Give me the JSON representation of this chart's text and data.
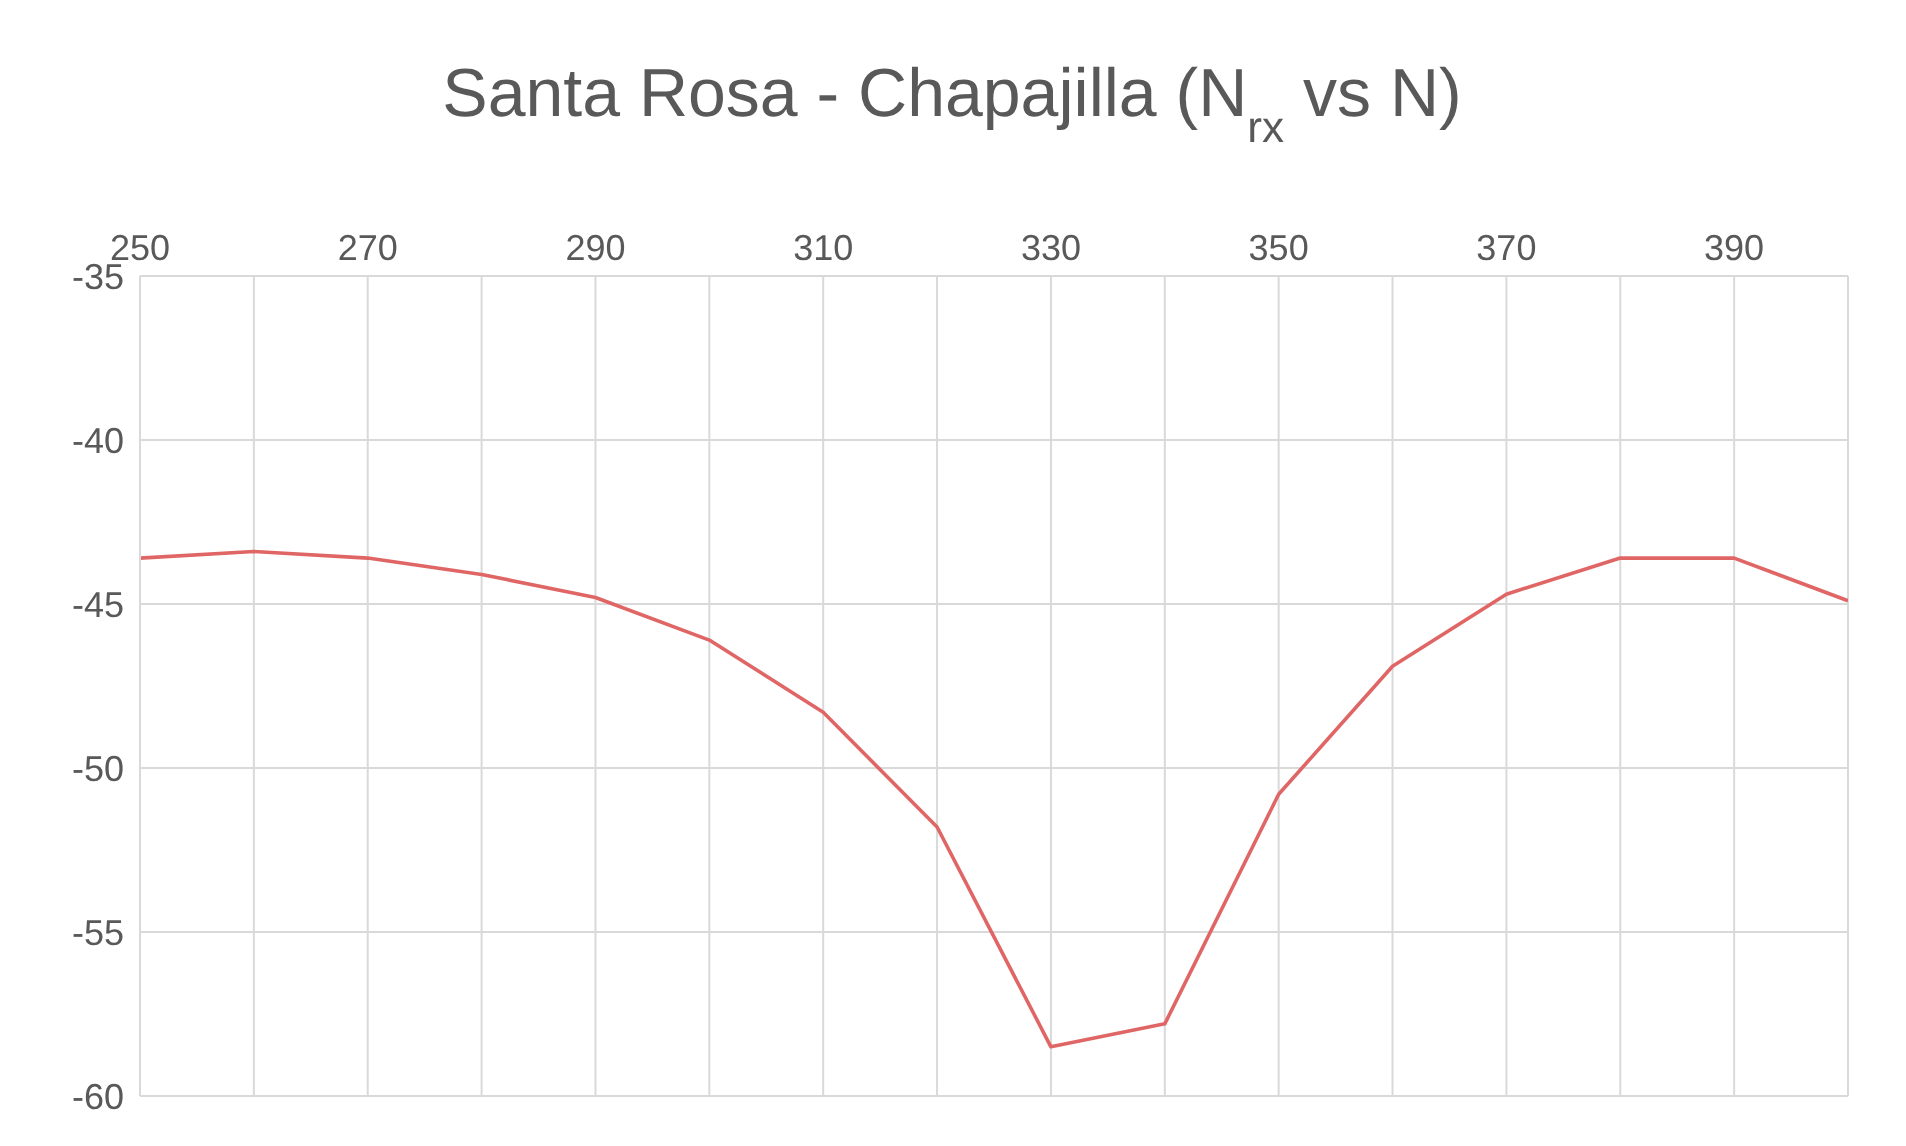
{
  "chart_data": {
    "type": "line",
    "title": "Santa Rosa - Chapajilla (N$_{rx}$ vs N)",
    "x": [
      250,
      260,
      270,
      280,
      290,
      300,
      310,
      320,
      330,
      340,
      350,
      360,
      370,
      380,
      390,
      400
    ],
    "series": [
      {
        "color": "#e06666",
        "values": [
          -43.6,
          -43.4,
          -43.6,
          -44.1,
          -44.8,
          -46.1,
          -48.3,
          -51.8,
          -58.5,
          -57.8,
          -50.8,
          -46.9,
          -44.7,
          -43.6,
          -43.6,
          -44.9
        ]
      }
    ],
    "xlim": [
      250,
      400
    ],
    "xticks": [
      250,
      {
        "value": 260,
        "label": null
      },
      270,
      {
        "value": 280,
        "label": null
      },
      290,
      {
        "value": 300,
        "label": null
      },
      310,
      {
        "value": 320,
        "label": null
      },
      330,
      {
        "value": 340,
        "label": null
      },
      350,
      {
        "value": 360,
        "label": null
      },
      370,
      {
        "value": 380,
        "label": null
      },
      390,
      {
        "value": 400,
        "label": null
      }
    ],
    "ylim": [
      -60,
      -35
    ],
    "yticks": [
      -60,
      -55,
      -50,
      -45,
      -40,
      -35
    ],
    "grid": true,
    "marker": "none",
    "line_style": "solid"
  }
}
